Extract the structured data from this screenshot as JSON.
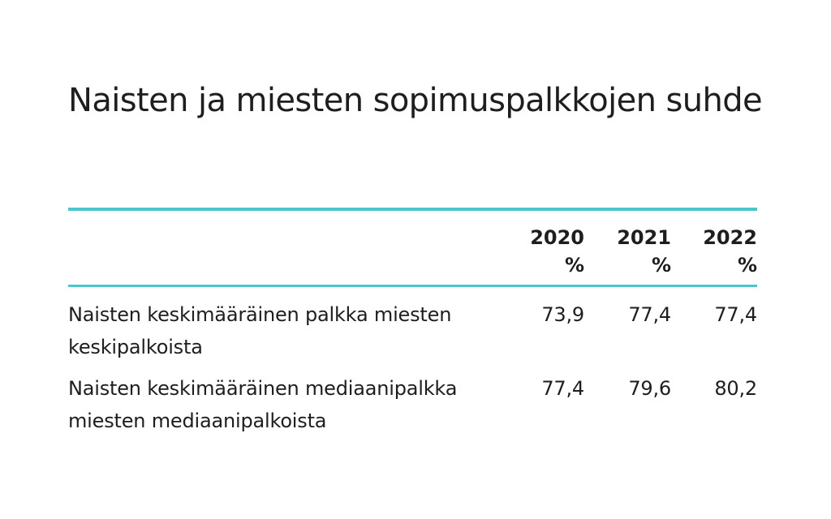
{
  "title": "Naisten ja miesten sopimuspalkkojen suhde",
  "table": {
    "header": {
      "years": [
        "2020",
        "2021",
        "2022"
      ],
      "unit": "%"
    },
    "rows": [
      {
        "label": "Naisten keskimääräinen palkka miesten keskipalkoista",
        "values": [
          "73,9",
          "77,4",
          "77,4"
        ]
      },
      {
        "label": "Naisten keskimääräinen mediaanipalkka miesten mediaanipalkoista",
        "values": [
          "77,4",
          "79,6",
          "80,2"
        ]
      }
    ]
  },
  "colors": {
    "accent_rule": "#4dc5cb",
    "text": "#1e1e1e"
  }
}
